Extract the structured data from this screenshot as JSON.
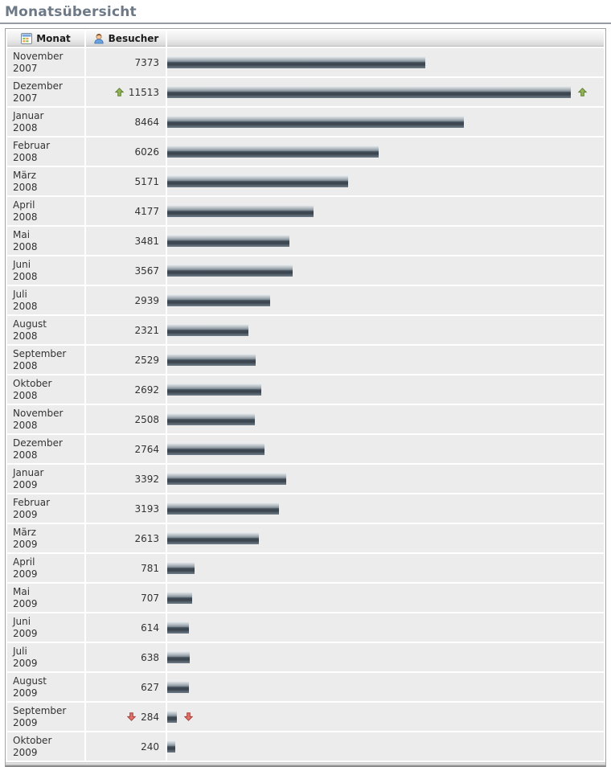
{
  "page": {
    "title": "Monatsübersicht"
  },
  "table": {
    "columns": [
      {
        "label": "Monat",
        "icon": "calendar-icon"
      },
      {
        "label": "Besucher",
        "icon": "visitor-icon"
      }
    ],
    "max_value": 11513,
    "rows": [
      {
        "month": "November",
        "year": "2007",
        "value": 7373,
        "trend": "none"
      },
      {
        "month": "Dezember",
        "year": "2007",
        "value": 11513,
        "trend": "up"
      },
      {
        "month": "Januar",
        "year": "2008",
        "value": 8464,
        "trend": "none"
      },
      {
        "month": "Februar",
        "year": "2008",
        "value": 6026,
        "trend": "none"
      },
      {
        "month": "März",
        "year": "2008",
        "value": 5171,
        "trend": "none"
      },
      {
        "month": "April",
        "year": "2008",
        "value": 4177,
        "trend": "none"
      },
      {
        "month": "Mai",
        "year": "2008",
        "value": 3481,
        "trend": "none"
      },
      {
        "month": "Juni",
        "year": "2008",
        "value": 3567,
        "trend": "none"
      },
      {
        "month": "Juli",
        "year": "2008",
        "value": 2939,
        "trend": "none"
      },
      {
        "month": "August",
        "year": "2008",
        "value": 2321,
        "trend": "none"
      },
      {
        "month": "September",
        "year": "2008",
        "value": 2529,
        "trend": "none"
      },
      {
        "month": "Oktober",
        "year": "2008",
        "value": 2692,
        "trend": "none"
      },
      {
        "month": "November",
        "year": "2008",
        "value": 2508,
        "trend": "none"
      },
      {
        "month": "Dezember",
        "year": "2008",
        "value": 2764,
        "trend": "none"
      },
      {
        "month": "Januar",
        "year": "2009",
        "value": 3392,
        "trend": "none"
      },
      {
        "month": "Februar",
        "year": "2009",
        "value": 3193,
        "trend": "none"
      },
      {
        "month": "März",
        "year": "2009",
        "value": 2613,
        "trend": "none"
      },
      {
        "month": "April",
        "year": "2009",
        "value": 781,
        "trend": "none"
      },
      {
        "month": "Mai",
        "year": "2009",
        "value": 707,
        "trend": "none"
      },
      {
        "month": "Juni",
        "year": "2009",
        "value": 614,
        "trend": "none"
      },
      {
        "month": "Juli",
        "year": "2009",
        "value": 638,
        "trend": "none"
      },
      {
        "month": "August",
        "year": "2009",
        "value": 627,
        "trend": "none"
      },
      {
        "month": "September",
        "year": "2009",
        "value": 284,
        "trend": "down"
      },
      {
        "month": "Oktober",
        "year": "2009",
        "value": 240,
        "trend": "none"
      }
    ]
  },
  "colors": {
    "title-text": "#6d7987",
    "bar-light": "#eef1f3",
    "bar-dark": "#39434d",
    "bar-bottom": "#707d88",
    "trend-up": "#92b654",
    "trend-up-border": "#5f7e33",
    "trend-down": "#e0736b",
    "trend-down-border": "#a83f38"
  },
  "chart_data": {
    "type": "bar",
    "orientation": "horizontal",
    "title": "Monatsübersicht",
    "value_label": "Besucher",
    "category_label": "Monat",
    "categories": [
      "November 2007",
      "Dezember 2007",
      "Januar 2008",
      "Februar 2008",
      "März 2008",
      "April 2008",
      "Mai 2008",
      "Juni 2008",
      "Juli 2008",
      "August 2008",
      "September 2008",
      "Oktober 2008",
      "November 2008",
      "Dezember 2008",
      "Januar 2009",
      "Februar 2009",
      "März 2009",
      "April 2009",
      "Mai 2009",
      "Juni 2009",
      "Juli 2009",
      "August 2009",
      "September 2009",
      "Oktober 2009"
    ],
    "values": [
      7373,
      11513,
      8464,
      6026,
      5171,
      4177,
      3481,
      3567,
      2939,
      2321,
      2529,
      2692,
      2508,
      2764,
      3392,
      3193,
      2613,
      781,
      707,
      614,
      638,
      627,
      284,
      240
    ],
    "xlim": [
      0,
      11513
    ],
    "trend_markers": {
      "up": "Dezember 2007",
      "down": "September 2009"
    },
    "legend": "none",
    "grid": "off"
  }
}
